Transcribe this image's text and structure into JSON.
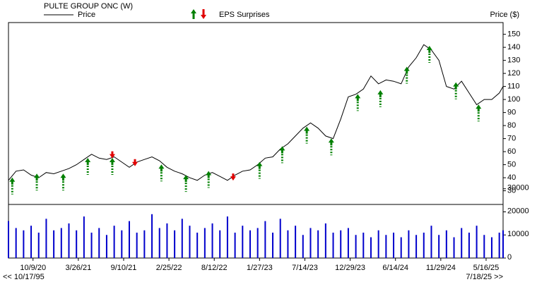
{
  "chart_data": {
    "type": "line",
    "title": "PULTE GROUP ONC (W)",
    "legend_eps": "EPS Surprises",
    "y_axis_label": "Price ($)",
    "start_label": "<< 10/17/95",
    "end_label": "7/18/25 >>",
    "xlim": [
      "2020-07-10",
      "2025-07-18"
    ],
    "xticks": [
      {
        "value": "2020-10-09",
        "label": "10/9/20"
      },
      {
        "value": "2021-03-26",
        "label": "3/26/21"
      },
      {
        "value": "2021-09-10",
        "label": "9/10/21"
      },
      {
        "value": "2022-02-25",
        "label": "2/25/22"
      },
      {
        "value": "2022-08-12",
        "label": "8/12/22"
      },
      {
        "value": "2023-01-27",
        "label": "1/27/23"
      },
      {
        "value": "2023-07-14",
        "label": "7/14/23"
      },
      {
        "value": "2023-12-29",
        "label": "12/29/23"
      },
      {
        "value": "2024-06-14",
        "label": "6/14/24"
      },
      {
        "value": "2024-11-29",
        "label": "11/29/24"
      },
      {
        "value": "2025-05-16",
        "label": "5/16/25"
      }
    ],
    "ylim": [
      19.5,
      159
    ],
    "yticks": [
      30,
      40,
      50,
      60,
      70,
      80,
      90,
      100,
      110,
      120,
      130,
      140,
      150
    ],
    "y2lim": [
      0,
      102000
    ],
    "y2ticks": [
      0,
      10000,
      20000,
      30000
    ],
    "x": [
      "2020-07-10",
      "2020-08-07",
      "2020-09-04",
      "2020-10-02",
      "2020-10-30",
      "2020-11-27",
      "2020-12-25",
      "2021-01-22",
      "2021-02-19",
      "2021-03-19",
      "2021-04-16",
      "2021-05-14",
      "2021-06-11",
      "2021-07-09",
      "2021-08-06",
      "2021-09-03",
      "2021-10-01",
      "2021-10-29",
      "2021-11-26",
      "2021-12-24",
      "2022-01-21",
      "2022-02-18",
      "2022-03-18",
      "2022-04-15",
      "2022-05-13",
      "2022-06-10",
      "2022-07-08",
      "2022-08-05",
      "2022-09-02",
      "2022-09-30",
      "2022-10-28",
      "2022-11-25",
      "2022-12-23",
      "2023-01-20",
      "2023-02-17",
      "2023-03-17",
      "2023-04-14",
      "2023-05-12",
      "2023-06-09",
      "2023-07-07",
      "2023-08-04",
      "2023-09-01",
      "2023-09-29",
      "2023-10-27",
      "2023-11-24",
      "2023-12-22",
      "2024-01-19",
      "2024-02-16",
      "2024-03-15",
      "2024-04-12",
      "2024-05-10",
      "2024-06-07",
      "2024-07-05",
      "2024-08-02",
      "2024-08-30",
      "2024-09-27",
      "2024-10-25",
      "2024-11-22",
      "2024-12-20",
      "2025-01-17",
      "2025-02-14",
      "2025-03-14",
      "2025-04-11",
      "2025-05-09",
      "2025-06-06",
      "2025-07-04",
      "2025-07-18"
    ],
    "series": [
      {
        "name": "Price",
        "color": "#000000",
        "values": [
          38,
          45,
          46,
          42,
          40,
          44,
          43,
          45,
          47,
          50,
          54,
          58,
          55,
          54,
          56,
          52,
          48,
          52,
          54,
          56,
          53,
          48,
          45,
          43,
          40,
          38,
          42,
          44,
          41,
          38,
          42,
          45,
          46,
          50,
          55,
          56,
          62,
          66,
          72,
          78,
          82,
          78,
          72,
          70,
          85,
          102,
          104,
          108,
          118,
          112,
          115,
          114,
          112,
          125,
          132,
          142,
          138,
          130,
          110,
          108,
          114,
          105,
          96,
          100,
          100,
          105,
          110
        ]
      }
    ],
    "volume": {
      "color": "#0000cc",
      "values": [
        16000,
        13000,
        12000,
        14000,
        11000,
        17000,
        12000,
        13000,
        15000,
        12000,
        18000,
        11000,
        13000,
        10000,
        14000,
        12000,
        16000,
        11000,
        12000,
        19000,
        13000,
        15000,
        12000,
        17000,
        14000,
        11000,
        13000,
        15000,
        12000,
        18000,
        11000,
        14000,
        12000,
        13000,
        16000,
        11000,
        17000,
        12000,
        14000,
        10000,
        13000,
        12000,
        15000,
        11000,
        12000,
        13000,
        10000,
        11000,
        9000,
        12000,
        10000,
        11000,
        9000,
        12000,
        10000,
        11000,
        14000,
        10000,
        12000,
        9000,
        13000,
        11000,
        14000,
        10000,
        9000,
        11000,
        12000
      ]
    },
    "eps_surprises": {
      "colors": {
        "up": "#008000",
        "down": "#e00000"
      },
      "dates": [
        "2020-07-24",
        "2020-10-23",
        "2021-01-29",
        "2021-04-30",
        "2021-07-30",
        "2021-07-30",
        "2021-10-22",
        "2022-01-28",
        "2022-04-29",
        "2022-07-22",
        "2022-10-21",
        "2023-01-27",
        "2023-04-21",
        "2023-07-21",
        "2023-10-20",
        "2024-01-26",
        "2024-04-19",
        "2024-07-26",
        "2024-10-18",
        "2025-01-24",
        "2025-04-18"
      ],
      "directions": [
        "up",
        "up",
        "up",
        "up",
        "up",
        "down",
        "down",
        "up",
        "up",
        "up",
        "down",
        "up",
        "up",
        "up",
        "up",
        "up",
        "up",
        "up",
        "up",
        "up",
        "up"
      ],
      "values": [
        38,
        41,
        41,
        53,
        53,
        57,
        51,
        48,
        40,
        43,
        40,
        50,
        62,
        77,
        68,
        102,
        105,
        123,
        139,
        111,
        94
      ]
    }
  }
}
